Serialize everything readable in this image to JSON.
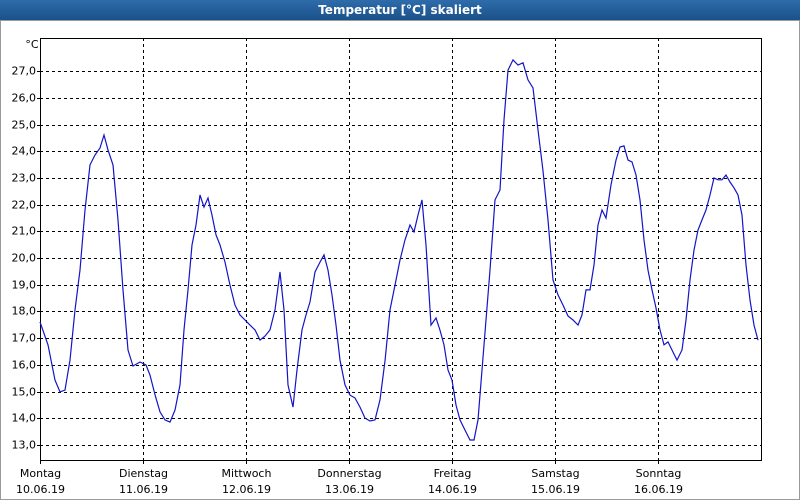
{
  "chart_data": {
    "type": "line",
    "title": "Temperatur [°C] skaliert",
    "y_label": "°C",
    "xlim": [
      0,
      7
    ],
    "xticks": [
      {
        "value": 0,
        "label": "Montag",
        "date": "10.06.19"
      },
      {
        "value": 1,
        "label": "Dienstag",
        "date": "11.06.19"
      },
      {
        "value": 2,
        "label": "Mittwoch",
        "date": "12.06.19"
      },
      {
        "value": 3,
        "label": "Donnerstag",
        "date": "13.06.19"
      },
      {
        "value": 4,
        "label": "Freitag",
        "date": "14.06.19"
      },
      {
        "value": 5,
        "label": "Samstag",
        "date": "15.06.19"
      },
      {
        "value": 6,
        "label": "Sonntag",
        "date": "16.06.19"
      }
    ],
    "ylim": [
      12.44,
      28.24
    ],
    "yticks": [
      {
        "value": 13,
        "label": "13,0"
      },
      {
        "value": 14,
        "label": "14,0"
      },
      {
        "value": 15,
        "label": "15,0"
      },
      {
        "value": 16,
        "label": "16,0"
      },
      {
        "value": 17,
        "label": "17,0"
      },
      {
        "value": 18,
        "label": "18,0"
      },
      {
        "value": 19,
        "label": "19,0"
      },
      {
        "value": 20,
        "label": "20,0"
      },
      {
        "value": 21,
        "label": "21,0"
      },
      {
        "value": 22,
        "label": "22,0"
      },
      {
        "value": 23,
        "label": "23,0"
      },
      {
        "value": 24,
        "label": "24,0"
      },
      {
        "value": 25,
        "label": "25,0"
      },
      {
        "value": 26,
        "label": "26,0"
      },
      {
        "value": 27,
        "label": "27,0"
      }
    ],
    "grid": true,
    "color": "#1414c8",
    "x": [
      0,
      0.078,
      0.146,
      0.194,
      0.243,
      0.291,
      0.34,
      0.388,
      0.437,
      0.485,
      0.534,
      0.583,
      0.621,
      0.66,
      0.709,
      0.757,
      0.806,
      0.854,
      0.903,
      0.971,
      1.029,
      1.068,
      1.117,
      1.165,
      1.214,
      1.262,
      1.311,
      1.359,
      1.398,
      1.437,
      1.476,
      1.515,
      1.553,
      1.592,
      1.631,
      1.67,
      1.709,
      1.748,
      1.796,
      1.845,
      1.893,
      1.942,
      1.99,
      2.039,
      2.087,
      2.136,
      2.184,
      2.233,
      2.282,
      2.33,
      2.369,
      2.408,
      2.456,
      2.495,
      2.544,
      2.583,
      2.621,
      2.67,
      2.718,
      2.757,
      2.796,
      2.835,
      2.874,
      2.913,
      2.961,
      3.01,
      3.058,
      3.107,
      3.155,
      3.204,
      3.252,
      3.301,
      3.35,
      3.398,
      3.447,
      3.495,
      3.544,
      3.592,
      3.631,
      3.67,
      3.709,
      3.748,
      3.796,
      3.845,
      3.883,
      3.922,
      3.961,
      4.0,
      4.039,
      4.078,
      4.126,
      4.175,
      4.214,
      4.252,
      4.291,
      4.33,
      4.369,
      4.417,
      4.466,
      4.505,
      4.544,
      4.592,
      4.641,
      4.689,
      4.738,
      4.786,
      4.835,
      4.883,
      4.932,
      4.981,
      5.029,
      5.078,
      5.126,
      5.175,
      5.223,
      5.262,
      5.301,
      5.34,
      5.379,
      5.417,
      5.456,
      5.495,
      5.544,
      5.592,
      5.631,
      5.67,
      5.709,
      5.748,
      5.786,
      5.825,
      5.864,
      5.903,
      5.942,
      5.981,
      6.019,
      6.058,
      6.097,
      6.136,
      6.184,
      6.233,
      6.272,
      6.311,
      6.35,
      6.388,
      6.427,
      6.466,
      6.505,
      6.544,
      6.583,
      6.621,
      6.66,
      6.699,
      6.738,
      6.777,
      6.816,
      6.854,
      6.893,
      6.932,
      6.971
    ],
    "values": [
      17.61,
      16.75,
      15.43,
      14.99,
      15.06,
      16.18,
      18.06,
      19.55,
      21.8,
      23.49,
      23.86,
      24.12,
      24.61,
      24.05,
      23.49,
      21.43,
      18.81,
      16.56,
      15.96,
      16.11,
      16.0,
      15.62,
      14.87,
      14.24,
      13.94,
      13.86,
      14.31,
      15.25,
      17.31,
      18.81,
      20.49,
      21.24,
      22.36,
      21.91,
      22.25,
      21.61,
      20.87,
      20.49,
      19.85,
      18.99,
      18.24,
      17.87,
      17.68,
      17.49,
      17.31,
      16.93,
      17.08,
      17.31,
      18.06,
      19.48,
      18.06,
      15.25,
      14.42,
      15.81,
      17.31,
      17.87,
      18.36,
      19.48,
      19.85,
      20.12,
      19.55,
      18.62,
      17.49,
      16.18,
      15.25,
      14.87,
      14.76,
      14.42,
      14.01,
      13.9,
      13.94,
      14.69,
      16.18,
      18.06,
      18.99,
      19.93,
      20.68,
      21.24,
      20.98,
      21.61,
      22.18,
      20.49,
      17.49,
      17.76,
      17.31,
      16.75,
      15.81,
      15.43,
      14.5,
      13.94,
      13.56,
      13.19,
      13.19,
      13.94,
      15.81,
      17.68,
      19.55,
      22.18,
      22.55,
      25.17,
      27.04,
      27.42,
      27.23,
      27.31,
      26.67,
      26.37,
      24.8,
      23.3,
      21.43,
      19.18,
      18.62,
      18.24,
      17.83,
      17.68,
      17.49,
      17.87,
      18.81,
      18.81,
      19.74,
      21.24,
      21.8,
      21.5,
      22.74,
      23.67,
      24.16,
      24.2,
      23.67,
      23.6,
      23.11,
      22.18,
      20.68,
      19.55,
      18.81,
      18.13,
      17.31,
      16.75,
      16.86,
      16.56,
      16.18,
      16.56,
      17.68,
      19.18,
      20.3,
      21.05,
      21.43,
      21.8,
      22.36,
      23.0,
      22.93,
      22.93,
      23.11,
      22.85,
      22.63,
      22.36,
      21.61,
      19.74,
      18.43,
      17.49,
      16.93
    ]
  }
}
